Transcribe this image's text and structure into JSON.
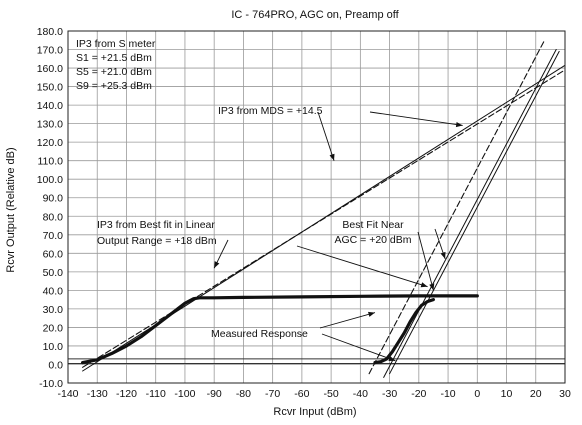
{
  "chart_data": {
    "type": "line",
    "title": "IC - 764PRO, AGC on, Preamp off",
    "xlabel": "Rcvr Input (dBm)",
    "ylabel": "Rcvr Output (Relative dB)",
    "xlim": [
      -140,
      30
    ],
    "ylim": [
      -10,
      180
    ],
    "grid": true,
    "xticks": [
      -140,
      -130,
      -120,
      -110,
      -100,
      -90,
      -80,
      -70,
      -60,
      -50,
      -40,
      -30,
      -20,
      -10,
      0,
      10,
      20,
      30
    ],
    "yticks": [
      -10,
      0,
      10,
      20,
      30,
      40,
      50,
      60,
      70,
      80,
      90,
      100,
      110,
      120,
      130,
      140,
      150,
      160,
      170,
      180
    ],
    "xtick_labels": [
      "-140",
      "-130",
      "-120",
      "-110",
      "-100",
      "-90",
      "-80",
      "-70",
      "-60",
      "-50",
      "-40",
      "-30",
      "-20",
      "-10",
      "0",
      "10",
      "20",
      "30"
    ],
    "ytick_labels": [
      "-10.0",
      "0.0",
      "10.0",
      "20.0",
      "30.0",
      "40.0",
      "50.0",
      "60.0",
      "70.0",
      "80.0",
      "90.0",
      "100.0",
      "110.0",
      "120.0",
      "130.0",
      "140.0",
      "150.0",
      "160.0",
      "170.0",
      "180.0"
    ],
    "series": [
      {
        "name": "",
        "style": "thick",
        "x": [
          -135,
          -130,
          -125,
          -120,
          -115,
          -110,
          -105,
          -100,
          -97,
          -95,
          -90,
          -80,
          -60,
          -40,
          -20,
          0
        ],
        "y": [
          1,
          2.5,
          6,
          10,
          15,
          21,
          27,
          33,
          35.5,
          36,
          36,
          36.2,
          36.5,
          36.8,
          37,
          37
        ]
      },
      {
        "name": "",
        "style": "thick",
        "x": [
          -35,
          -33,
          -31,
          -29,
          -27,
          -25,
          -23,
          -21,
          -19,
          -17,
          -15
        ],
        "y": [
          1,
          1.5,
          3,
          7,
          12,
          17,
          23,
          28,
          32,
          34,
          35
        ]
      },
      {
        "name": "",
        "style": "thin",
        "x": [
          -135,
          30
        ],
        "y": [
          -3.5,
          161.5
        ]
      },
      {
        "name": "",
        "style": "dashed",
        "x": [
          -135,
          30
        ],
        "y": [
          -1.5,
          159
        ]
      },
      {
        "name": "",
        "style": "thin",
        "x": [
          -32,
          27
        ],
        "y": [
          -7,
          170
        ]
      },
      {
        "name": "",
        "style": "thin",
        "x": [
          -30,
          28
        ],
        "y": [
          -5,
          169
        ]
      },
      {
        "name": "",
        "style": "dashed",
        "x": [
          -37,
          23
        ],
        "y": [
          -5,
          175
        ]
      }
    ],
    "horizontal_lines": [
      {
        "y": 0.5,
        "x": [
          -140,
          30
        ]
      },
      {
        "y": 3.0,
        "x": [
          -140,
          30
        ]
      }
    ],
    "annotations": [
      {
        "lines": [
          "IP3 from S meter",
          "S1 = +21.5 dBm",
          "S5 = +21.0 dBm",
          "S9 = +25.3 dBm"
        ]
      },
      {
        "lines": [
          "IP3 from MDS = +14.5"
        ],
        "targets": [
          [
            -49,
            110
          ],
          [
            -5,
            129
          ]
        ]
      },
      {
        "lines": [
          "IP3 from Best fit in Linear",
          "Output Range = +18 dBm"
        ],
        "targets": [
          [
            -90,
            52
          ],
          [
            -17,
            42
          ]
        ]
      },
      {
        "lines": [
          "Best Fit Near",
          "AGC = +20 dBm"
        ],
        "targets": [
          [
            -15,
            40
          ],
          [
            -11,
            57
          ]
        ]
      },
      {
        "lines": [
          "Measured Response"
        ],
        "targets": [
          [
            -35,
            28
          ],
          [
            -28,
            2
          ]
        ]
      }
    ]
  }
}
